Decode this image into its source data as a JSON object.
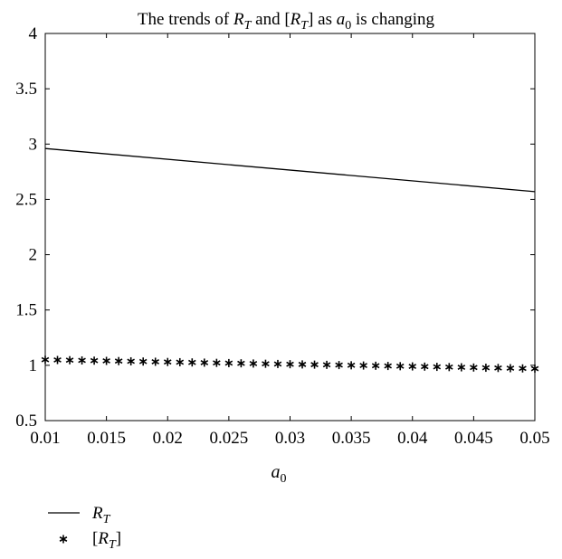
{
  "chart_data": {
    "type": "line",
    "title": {
      "prefix": "The trends of ",
      "var1": "R",
      "var1_sub": "T",
      "mid": " and [",
      "var2": "R",
      "var2_sub": "T",
      "mid2": "] as ",
      "var3": "a",
      "var3_sub": "0",
      "suffix": " is changing"
    },
    "xlabel": {
      "var": "a",
      "sub": "0"
    },
    "ylabel": "",
    "xlim": [
      0.01,
      0.05
    ],
    "ylim": [
      0.5,
      4
    ],
    "x_ticks": [
      "0.01",
      "0.015",
      "0.02",
      "0.025",
      "0.03",
      "0.035",
      "0.04",
      "0.045",
      "0.05"
    ],
    "y_ticks": [
      "0.5",
      "1",
      "1.5",
      "2",
      "2.5",
      "3",
      "3.5",
      "4"
    ],
    "grid": false,
    "legend_position": "below-left",
    "series": [
      {
        "legend": {
          "var": "R",
          "sub": "T",
          "open": "",
          "close": ""
        },
        "style": "solid-line",
        "color": "#000000",
        "x": [
          0.01,
          0.05
        ],
        "y": [
          2.96,
          2.57
        ]
      },
      {
        "legend": {
          "var": "R",
          "sub": "T",
          "open": "[",
          "close": "]"
        },
        "style": "asterisk-markers",
        "color": "#000000",
        "x": [
          0.01,
          0.011,
          0.012,
          0.013,
          0.014,
          0.015,
          0.016,
          0.017,
          0.018,
          0.019,
          0.02,
          0.021,
          0.022,
          0.023,
          0.024,
          0.025,
          0.026,
          0.027,
          0.028,
          0.029,
          0.03,
          0.031,
          0.032,
          0.033,
          0.034,
          0.035,
          0.036,
          0.037,
          0.038,
          0.039,
          0.04,
          0.041,
          0.042,
          0.043,
          0.044,
          0.045,
          0.046,
          0.047,
          0.048,
          0.049,
          0.05
        ],
        "y": [
          1.05,
          1.048,
          1.046,
          1.044,
          1.042,
          1.04,
          1.038,
          1.036,
          1.034,
          1.032,
          1.03,
          1.028,
          1.026,
          1.024,
          1.022,
          1.02,
          1.018,
          1.016,
          1.014,
          1.012,
          1.01,
          1.008,
          1.006,
          1.004,
          1.002,
          1.0,
          0.998,
          0.996,
          0.994,
          0.992,
          0.99,
          0.988,
          0.986,
          0.984,
          0.982,
          0.98,
          0.978,
          0.976,
          0.974,
          0.972,
          0.97
        ]
      }
    ]
  }
}
